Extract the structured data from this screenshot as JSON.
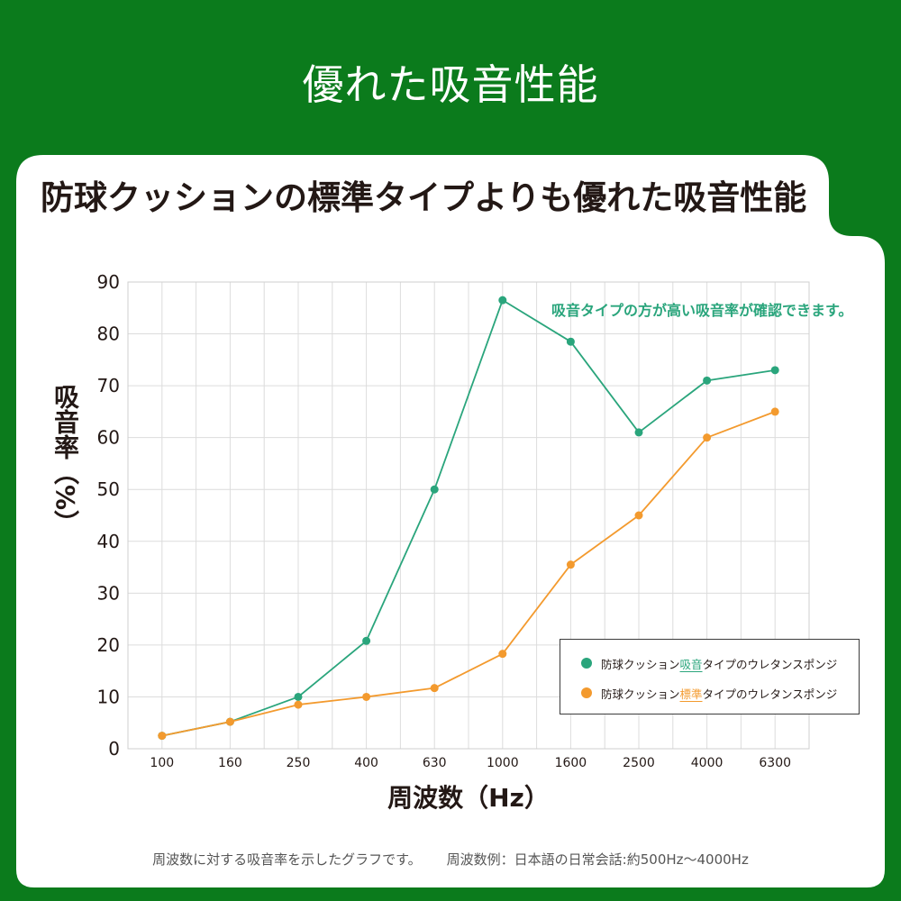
{
  "page": {
    "title": "優れた吸音性能",
    "heading": "防球クッションの標準タイプよりも優れた吸音性能",
    "footer": {
      "note": "周波数に対する吸音率を示したグラフです。",
      "example": "周波数例：日本語の日常会話:約500Hz〜4000Hz"
    }
  },
  "colors": {
    "background": "#0b7b1c",
    "card": "#ffffff",
    "ink": "#231815",
    "green_series": "#2aa57c",
    "orange_series": "#f39a2e",
    "grid": "#dcdcdc"
  },
  "chart_data": {
    "type": "line",
    "title": "",
    "xlabel": "周波数（Hz）",
    "ylabel": "吸音率（%）",
    "categories": [
      "100",
      "160",
      "250",
      "400",
      "630",
      "1000",
      "1600",
      "2500",
      "4000",
      "6300"
    ],
    "ylim": [
      0,
      90
    ],
    "yticks": [
      0,
      10,
      20,
      30,
      40,
      50,
      60,
      70,
      80,
      90
    ],
    "grid": true,
    "legend_position": "bottom-right",
    "annotation": "吸音タイプの方が高い吸音率が確認できます。",
    "series": [
      {
        "name": "防球クッション吸音タイプのウレタンスポンジ",
        "highlight": "吸音",
        "color": "#2aa57c",
        "values": [
          2.5,
          5.2,
          10,
          20.8,
          50,
          86.5,
          78.5,
          61,
          71,
          73
        ]
      },
      {
        "name": "防球クッション標準タイプのウレタンスポンジ",
        "highlight": "標準",
        "color": "#f39a2e",
        "values": [
          2.5,
          5.2,
          8.5,
          10,
          11.7,
          18.3,
          35.5,
          45,
          60,
          65
        ]
      }
    ]
  }
}
